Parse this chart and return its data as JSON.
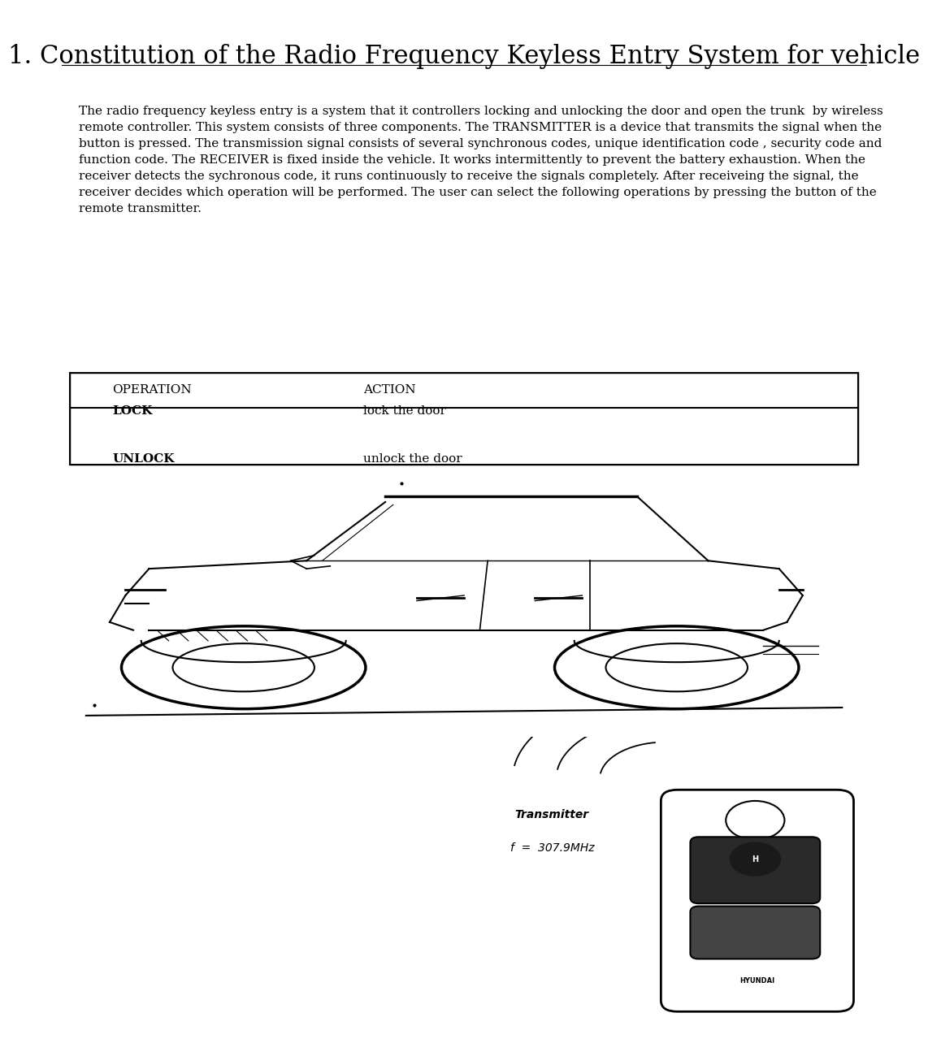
{
  "title": "1. Constitution of the Radio Frequency Keyless Entry System for vehicle",
  "body_text": "The radio frequency keyless entry is a system that it controllers locking and unlocking the door and open the trunk  by wireless\nremote controller. This system consists of three components. The TRANSMITTER is a device that transmits the signal when the\nbutton is pressed. The transmission signal consists of several synchronous codes, unique identification code , security code and\nfunction code. The RECEIVER is fixed inside the vehicle. It works intermittently to prevent the battery exhaustion. When the\nreceiver detects the sychronous code, it runs continuously to receive the signals completely. After receiveing the signal, the\nreceiver decides which operation will be performed. The user can select the following operations by pressing the button of the\nremote transmitter.",
  "table_header_op": "OPERATION",
  "table_header_act": "ACTION",
  "table_rows": [
    {
      "op": "LOCK",
      "act": "lock the door"
    },
    {
      "op": "UNLOCK",
      "act": "unlock the door"
    }
  ],
  "transmitter_label": "Transmitter",
  "transmitter_freq": "f  =  307.9MHz",
  "bg_color": "#ffffff",
  "text_color": "#000000",
  "title_fontsize": 22,
  "body_fontsize": 11,
  "table_fontsize": 11
}
